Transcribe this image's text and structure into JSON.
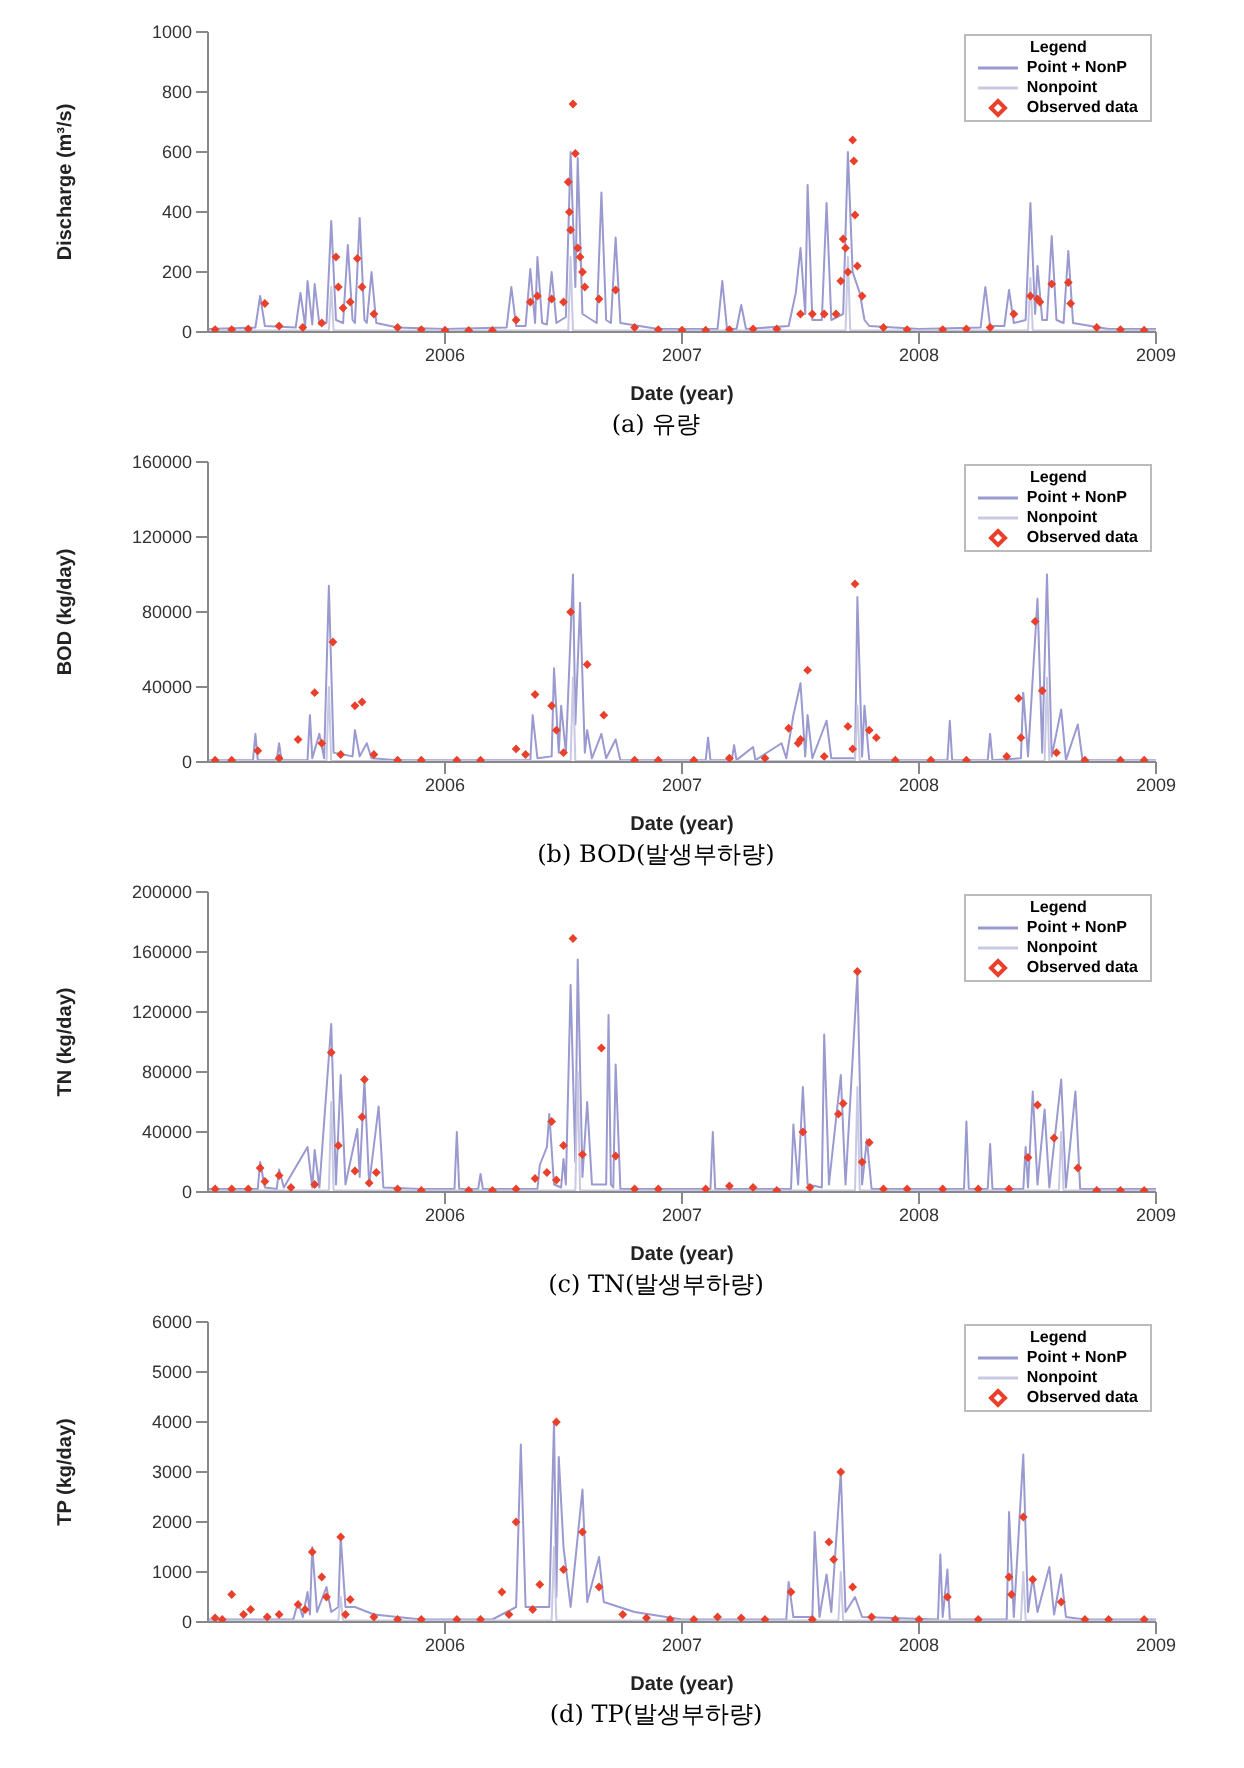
{
  "chart_data": [
    {
      "type": "line",
      "title": "(a) 유량",
      "xlabel": "Date (year)",
      "ylabel": "Discharge (m³/s)",
      "xlim": [
        2005,
        2009
      ],
      "xticks": [
        2006,
        2007,
        2008,
        2009
      ],
      "ylim": [
        0,
        1000
      ],
      "yticks": [
        0,
        200,
        400,
        600,
        800,
        1000
      ],
      "legend": "top right",
      "legend_title": "Legend",
      "series": [
        {
          "name": "Point + NonP",
          "color": "#9a9ad0",
          "x": [
            2005.0,
            2005.2,
            2005.22,
            2005.24,
            2005.37,
            2005.39,
            2005.41,
            2005.42,
            2005.44,
            2005.45,
            2005.47,
            2005.5,
            2005.52,
            2005.54,
            2005.57,
            2005.59,
            2005.61,
            2005.62,
            2005.64,
            2005.66,
            2005.67,
            2005.69,
            2005.71,
            2005.8,
            2006.0,
            2006.26,
            2006.28,
            2006.3,
            2006.34,
            2006.36,
            2006.38,
            2006.39,
            2006.41,
            2006.43,
            2006.45,
            2006.47,
            2006.51,
            2006.53,
            2006.55,
            2006.56,
            2006.58,
            2006.64,
            2006.66,
            2006.68,
            2006.7,
            2006.72,
            2006.74,
            2006.9,
            2007.15,
            2007.17,
            2007.19,
            2007.23,
            2007.25,
            2007.27,
            2007.45,
            2007.48,
            2007.5,
            2007.52,
            2007.53,
            2007.55,
            2007.59,
            2007.61,
            2007.63,
            2007.68,
            2007.7,
            2007.72,
            2007.75,
            2007.77,
            2007.79,
            2008.0,
            2008.26,
            2008.28,
            2008.3,
            2008.36,
            2008.38,
            2008.4,
            2008.45,
            2008.47,
            2008.49,
            2008.5,
            2008.52,
            2008.54,
            2008.56,
            2008.58,
            2008.61,
            2008.63,
            2008.65,
            2008.8,
            2009.0
          ],
          "values": [
            10,
            15,
            120,
            20,
            15,
            130,
            20,
            170,
            25,
            160,
            25,
            30,
            370,
            40,
            30,
            290,
            40,
            30,
            380,
            40,
            30,
            200,
            30,
            15,
            10,
            15,
            150,
            20,
            20,
            210,
            30,
            250,
            30,
            25,
            200,
            30,
            50,
            600,
            150,
            580,
            60,
            30,
            465,
            40,
            30,
            315,
            30,
            10,
            10,
            170,
            10,
            10,
            90,
            10,
            20,
            130,
            280,
            60,
            490,
            40,
            40,
            430,
            40,
            60,
            600,
            200,
            130,
            40,
            20,
            10,
            15,
            150,
            20,
            20,
            140,
            30,
            40,
            430,
            60,
            220,
            40,
            40,
            320,
            40,
            30,
            270,
            30,
            10,
            10
          ]
        },
        {
          "name": "Nonpoint",
          "color": "#c9c9e4",
          "x": [
            2005.0,
            2005.51,
            2005.52,
            2005.53,
            2006.52,
            2006.53,
            2006.54,
            2007.69,
            2007.7,
            2007.71,
            2008.46,
            2008.47,
            2008.48,
            2009.0
          ],
          "values": [
            5,
            5,
            150,
            5,
            5,
            250,
            5,
            5,
            250,
            5,
            5,
            180,
            5,
            5
          ]
        },
        {
          "name": "Observed data",
          "type": "scatter",
          "marker": "diamond",
          "color": "#e8402a",
          "x": [
            2005.03,
            2005.1,
            2005.17,
            2005.24,
            2005.3,
            2005.4,
            2005.48,
            2005.54,
            2005.55,
            2005.57,
            2005.6,
            2005.63,
            2005.65,
            2005.7,
            2005.8,
            2005.9,
            2006.0,
            2006.1,
            2006.2,
            2006.3,
            2006.36,
            2006.39,
            2006.45,
            2006.5,
            2006.52,
            2006.525,
            2006.53,
            2006.54,
            2006.55,
            2006.56,
            2006.57,
            2006.58,
            2006.59,
            2006.65,
            2006.72,
            2006.8,
            2006.9,
            2007.0,
            2007.1,
            2007.2,
            2007.3,
            2007.4,
            2007.5,
            2007.55,
            2007.6,
            2007.65,
            2007.67,
            2007.68,
            2007.69,
            2007.7,
            2007.72,
            2007.725,
            2007.73,
            2007.74,
            2007.76,
            2007.85,
            2007.95,
            2008.1,
            2008.2,
            2008.3,
            2008.4,
            2008.47,
            2008.5,
            2008.51,
            2008.56,
            2008.63,
            2008.64,
            2008.75,
            2008.85,
            2008.95
          ],
          "values": [
            8,
            8,
            10,
            95,
            20,
            15,
            30,
            250,
            150,
            80,
            100,
            245,
            150,
            60,
            15,
            8,
            6,
            5,
            5,
            40,
            100,
            120,
            110,
            100,
            500,
            400,
            340,
            760,
            595,
            280,
            250,
            200,
            150,
            110,
            140,
            15,
            8,
            6,
            6,
            8,
            10,
            10,
            60,
            60,
            60,
            60,
            170,
            310,
            280,
            200,
            640,
            570,
            390,
            220,
            120,
            15,
            8,
            8,
            10,
            15,
            60,
            120,
            110,
            100,
            160,
            165,
            95,
            15,
            8,
            6
          ]
        }
      ]
    },
    {
      "type": "line",
      "title": "(b) BOD(발생부하량)",
      "xlabel": "Date (year)",
      "ylabel": "BOD (kg/day)",
      "xlim": [
        2005,
        2009
      ],
      "xticks": [
        2006,
        2007,
        2008,
        2009
      ],
      "ylim": [
        0,
        160000
      ],
      "yticks": [
        0,
        40000,
        80000,
        120000,
        160000
      ],
      "legend": "top right",
      "legend_title": "Legend",
      "series": [
        {
          "name": "Point + NonP",
          "color": "#9a9ad0",
          "x": [
            2005.0,
            2005.19,
            2005.2,
            2005.21,
            2005.29,
            2005.3,
            2005.31,
            2005.42,
            2005.43,
            2005.44,
            2005.47,
            2005.49,
            2005.51,
            2005.53,
            2005.61,
            2005.62,
            2005.64,
            2005.67,
            2005.69,
            2005.8,
            2006.36,
            2006.37,
            2006.39,
            2006.45,
            2006.46,
            2006.48,
            2006.49,
            2006.51,
            2006.54,
            2006.55,
            2006.57,
            2006.59,
            2006.6,
            2006.62,
            2006.66,
            2006.68,
            2006.72,
            2006.74,
            2007.1,
            2007.11,
            2007.12,
            2007.21,
            2007.22,
            2007.23,
            2007.3,
            2007.31,
            2007.42,
            2007.44,
            2007.47,
            2007.5,
            2007.52,
            2007.53,
            2007.55,
            2007.61,
            2007.63,
            2007.73,
            2007.74,
            2007.76,
            2007.77,
            2007.79,
            2008.12,
            2008.13,
            2008.14,
            2008.29,
            2008.3,
            2008.31,
            2008.43,
            2008.44,
            2008.46,
            2008.5,
            2008.52,
            2008.54,
            2008.56,
            2008.6,
            2008.62,
            2008.67,
            2008.69,
            2009.0
          ],
          "values": [
            1000,
            1000,
            15000,
            1000,
            1000,
            10000,
            1000,
            1000,
            25000,
            2000,
            15000,
            2000,
            94000,
            5000,
            3000,
            17000,
            3000,
            10000,
            2000,
            1000,
            1000,
            25000,
            2000,
            3000,
            50000,
            5000,
            30000,
            5000,
            100000,
            20000,
            85000,
            5000,
            17000,
            2000,
            15000,
            2000,
            12000,
            1000,
            1000,
            13000,
            1000,
            1000,
            9000,
            1000,
            8000,
            1000,
            10000,
            2000,
            25000,
            42000,
            3000,
            25000,
            2000,
            22000,
            2000,
            2000,
            88000,
            3000,
            30000,
            1000,
            1000,
            22000,
            1000,
            1000,
            15000,
            1000,
            2000,
            37000,
            3000,
            87000,
            5000,
            100000,
            3000,
            28000,
            1000,
            20000,
            1000,
            1000
          ]
        },
        {
          "name": "Nonpoint",
          "color": "#c9c9e4",
          "x": [
            2005.0,
            2005.5,
            2005.51,
            2005.52,
            2006.53,
            2006.54,
            2006.55,
            2007.73,
            2007.74,
            2007.75,
            2008.53,
            2008.54,
            2008.55,
            2009.0
          ],
          "values": [
            500,
            500,
            40000,
            500,
            500,
            45000,
            500,
            500,
            30000,
            500,
            500,
            45000,
            500,
            500
          ]
        },
        {
          "name": "Observed data",
          "type": "scatter",
          "marker": "diamond",
          "color": "#e8402a",
          "x": [
            2005.03,
            2005.1,
            2005.21,
            2005.3,
            2005.38,
            2005.45,
            2005.48,
            2005.527,
            2005.56,
            2005.62,
            2005.65,
            2005.7,
            2005.8,
            2005.9,
            2006.05,
            2006.15,
            2006.3,
            2006.34,
            2006.38,
            2006.45,
            2006.47,
            2006.5,
            2006.53,
            2006.6,
            2006.67,
            2006.8,
            2006.9,
            2007.05,
            2007.2,
            2007.35,
            2007.45,
            2007.49,
            2007.5,
            2007.53,
            2007.6,
            2007.7,
            2007.72,
            2007.73,
            2007.79,
            2007.82,
            2007.9,
            2008.05,
            2008.2,
            2008.37,
            2008.42,
            2008.43,
            2008.49,
            2008.52,
            2008.58,
            2008.7,
            2008.85,
            2008.95
          ],
          "values": [
            1000,
            1000,
            6000,
            2000,
            12000,
            37000,
            10000,
            64000,
            4000,
            30000,
            32000,
            4000,
            1000,
            1000,
            1000,
            1000,
            7000,
            4000,
            36000,
            30000,
            17000,
            5000,
            80000,
            52000,
            25000,
            1000,
            1000,
            1000,
            2000,
            2000,
            18000,
            10000,
            12000,
            49000,
            3000,
            19000,
            7000,
            95000,
            17000,
            13000,
            1000,
            1000,
            1000,
            3000,
            34000,
            13000,
            75000,
            38000,
            5000,
            1000,
            1000,
            1000
          ]
        }
      ]
    },
    {
      "type": "line",
      "title": "(c) TN(발생부하량)",
      "xlabel": "Date (year)",
      "ylabel": "TN (kg/day)",
      "xlim": [
        2005,
        2009
      ],
      "xticks": [
        2006,
        2007,
        2008,
        2009
      ],
      "ylim": [
        0,
        200000
      ],
      "yticks": [
        0,
        40000,
        80000,
        120000,
        160000,
        200000
      ],
      "legend": "top right",
      "legend_title": "Legend",
      "series": [
        {
          "name": "Point + NonP",
          "color": "#9a9ad0",
          "x": [
            2005.0,
            2005.21,
            2005.22,
            2005.24,
            2005.29,
            2005.3,
            2005.32,
            2005.42,
            2005.44,
            2005.45,
            2005.47,
            2005.52,
            2005.54,
            2005.56,
            2005.58,
            2005.63,
            2005.64,
            2005.66,
            2005.68,
            2005.72,
            2005.74,
            2005.9,
            2006.04,
            2006.05,
            2006.06,
            2006.14,
            2006.15,
            2006.16,
            2006.39,
            2006.4,
            2006.43,
            2006.44,
            2006.46,
            2006.49,
            2006.5,
            2006.51,
            2006.53,
            2006.55,
            2006.56,
            2006.58,
            2006.6,
            2006.62,
            2006.68,
            2006.69,
            2006.7,
            2006.71,
            2006.72,
            2006.74,
            2007.12,
            2007.13,
            2007.14,
            2007.46,
            2007.47,
            2007.49,
            2007.51,
            2007.53,
            2007.59,
            2007.6,
            2007.62,
            2007.67,
            2007.69,
            2007.74,
            2007.76,
            2007.78,
            2007.8,
            2008.19,
            2008.2,
            2008.21,
            2008.29,
            2008.3,
            2008.31,
            2008.44,
            2008.45,
            2008.46,
            2008.48,
            2008.5,
            2008.53,
            2008.55,
            2008.6,
            2008.62,
            2008.66,
            2008.68,
            2009.0
          ],
          "values": [
            2000,
            2000,
            20000,
            3000,
            2000,
            15000,
            3000,
            30000,
            3000,
            28000,
            3000,
            112000,
            5000,
            78000,
            5000,
            42000,
            10000,
            75000,
            5000,
            57000,
            3000,
            2000,
            2000,
            40000,
            2000,
            2000,
            12000,
            2000,
            2000,
            18000,
            30000,
            52000,
            5000,
            3000,
            22000,
            5000,
            138000,
            20000,
            155000,
            10000,
            60000,
            5000,
            5000,
            118000,
            5000,
            3000,
            85000,
            2000,
            2000,
            40000,
            2000,
            2000,
            45000,
            5000,
            70000,
            5000,
            3000,
            105000,
            5000,
            78000,
            5000,
            145000,
            5000,
            35000,
            2000,
            2000,
            47000,
            2000,
            2000,
            32000,
            2000,
            2000,
            30000,
            3000,
            67000,
            5000,
            55000,
            3000,
            75000,
            3000,
            67000,
            2000,
            2000
          ]
        },
        {
          "name": "Nonpoint",
          "color": "#c9c9e4",
          "x": [
            2005.0,
            2005.51,
            2005.52,
            2005.53,
            2006.55,
            2006.56,
            2006.57,
            2007.73,
            2007.74,
            2007.75,
            2008.59,
            2008.6,
            2008.61,
            2009.0
          ],
          "values": [
            1000,
            1000,
            60000,
            1000,
            1000,
            80000,
            1000,
            1000,
            70000,
            1000,
            1000,
            40000,
            1000,
            1000
          ]
        },
        {
          "name": "Observed data",
          "type": "scatter",
          "marker": "diamond",
          "color": "#e8402a",
          "x": [
            2005.03,
            2005.1,
            2005.17,
            2005.22,
            2005.24,
            2005.3,
            2005.35,
            2005.45,
            2005.52,
            2005.55,
            2005.62,
            2005.65,
            2005.66,
            2005.68,
            2005.71,
            2005.8,
            2005.9,
            2006.1,
            2006.2,
            2006.3,
            2006.38,
            2006.43,
            2006.45,
            2006.47,
            2006.5,
            2006.54,
            2006.58,
            2006.66,
            2006.72,
            2006.8,
            2006.9,
            2007.1,
            2007.2,
            2007.3,
            2007.4,
            2007.51,
            2007.54,
            2007.66,
            2007.68,
            2007.74,
            2007.76,
            2007.79,
            2007.85,
            2007.95,
            2008.1,
            2008.25,
            2008.38,
            2008.46,
            2008.5,
            2008.57,
            2008.67,
            2008.75,
            2008.85,
            2008.95
          ],
          "values": [
            2000,
            2000,
            2000,
            16000,
            7000,
            11000,
            3000,
            5000,
            93000,
            31000,
            14000,
            50000,
            75000,
            6000,
            13000,
            2000,
            1000,
            1000,
            1000,
            2000,
            9000,
            13000,
            47000,
            8000,
            31000,
            169000,
            25000,
            96000,
            24000,
            2000,
            2000,
            2000,
            4000,
            3000,
            1000,
            40000,
            3000,
            52000,
            59000,
            147000,
            20000,
            33000,
            2000,
            2000,
            2000,
            2000,
            2000,
            23000,
            58000,
            36000,
            16000,
            1000,
            1000,
            1000
          ]
        }
      ]
    },
    {
      "type": "line",
      "title": "(d) TP(발생부하량)",
      "xlabel": "Date (year)",
      "ylabel": "TP (kg/day)",
      "xlim": [
        2005,
        2009
      ],
      "xticks": [
        2006,
        2007,
        2008,
        2009
      ],
      "ylim": [
        0,
        6000
      ],
      "yticks": [
        0,
        1000,
        2000,
        3000,
        4000,
        5000,
        6000
      ],
      "legend": "top right",
      "legend_title": "Legend",
      "series": [
        {
          "name": "Point + NonP",
          "color": "#9a9ad0",
          "x": [
            2005.0,
            2005.36,
            2005.38,
            2005.4,
            2005.42,
            2005.43,
            2005.44,
            2005.46,
            2005.5,
            2005.52,
            2005.55,
            2005.56,
            2005.58,
            2005.62,
            2005.7,
            2005.9,
            2006.2,
            2006.3,
            2006.32,
            2006.34,
            2006.44,
            2006.46,
            2006.47,
            2006.48,
            2006.5,
            2006.53,
            2006.58,
            2006.6,
            2006.65,
            2006.67,
            2006.8,
            2007.0,
            2007.44,
            2007.45,
            2007.47,
            2007.55,
            2007.56,
            2007.58,
            2007.61,
            2007.63,
            2007.67,
            2007.69,
            2007.73,
            2007.76,
            2008.08,
            2008.09,
            2008.1,
            2008.12,
            2008.13,
            2008.37,
            2008.38,
            2008.4,
            2008.44,
            2008.46,
            2008.48,
            2008.5,
            2008.55,
            2008.57,
            2008.6,
            2008.62,
            2008.7,
            2009.0
          ],
          "values": [
            50,
            50,
            400,
            100,
            600,
            150,
            1500,
            200,
            700,
            200,
            300,
            1700,
            300,
            300,
            150,
            50,
            50,
            300,
            3550,
            300,
            300,
            4000,
            500,
            3300,
            1500,
            300,
            2650,
            400,
            1300,
            400,
            200,
            50,
            50,
            800,
            100,
            100,
            1800,
            100,
            950,
            200,
            3000,
            200,
            500,
            100,
            50,
            1350,
            100,
            1050,
            50,
            50,
            2200,
            100,
            3350,
            200,
            900,
            200,
            1100,
            150,
            950,
            100,
            50,
            50
          ]
        },
        {
          "name": "Nonpoint",
          "color": "#c9c9e4",
          "x": [
            2005.0,
            2005.55,
            2005.56,
            2005.57,
            2006.45,
            2006.46,
            2006.47,
            2007.66,
            2007.67,
            2007.68,
            2008.43,
            2008.44,
            2008.45,
            2009.0
          ],
          "values": [
            30,
            30,
            500,
            30,
            30,
            1500,
            30,
            30,
            1000,
            30,
            30,
            1000,
            30,
            30
          ]
        },
        {
          "name": "Observed data",
          "type": "scatter",
          "marker": "diamond",
          "color": "#e8402a",
          "x": [
            2005.03,
            2005.06,
            2005.1,
            2005.15,
            2005.18,
            2005.25,
            2005.3,
            2005.38,
            2005.41,
            2005.44,
            2005.48,
            2005.5,
            2005.56,
            2005.58,
            2005.6,
            2005.7,
            2005.8,
            2005.9,
            2006.05,
            2006.15,
            2006.24,
            2006.27,
            2006.3,
            2006.37,
            2006.4,
            2006.47,
            2006.5,
            2006.58,
            2006.65,
            2006.75,
            2006.85,
            2006.95,
            2007.05,
            2007.15,
            2007.25,
            2007.35,
            2007.46,
            2007.55,
            2007.62,
            2007.64,
            2007.67,
            2007.72,
            2007.8,
            2007.9,
            2008.0,
            2008.12,
            2008.25,
            2008.38,
            2008.39,
            2008.44,
            2008.48,
            2008.6,
            2008.7,
            2008.8,
            2008.95
          ],
          "values": [
            80,
            50,
            550,
            150,
            250,
            100,
            150,
            350,
            250,
            1400,
            900,
            500,
            1700,
            150,
            450,
            100,
            50,
            50,
            50,
            50,
            600,
            150,
            2000,
            250,
            750,
            4000,
            1050,
            1800,
            700,
            150,
            80,
            50,
            50,
            100,
            80,
            50,
            600,
            50,
            1600,
            1250,
            3000,
            700,
            100,
            50,
            50,
            500,
            50,
            900,
            550,
            2100,
            850,
            400,
            50,
            50,
            50
          ]
        }
      ]
    }
  ]
}
